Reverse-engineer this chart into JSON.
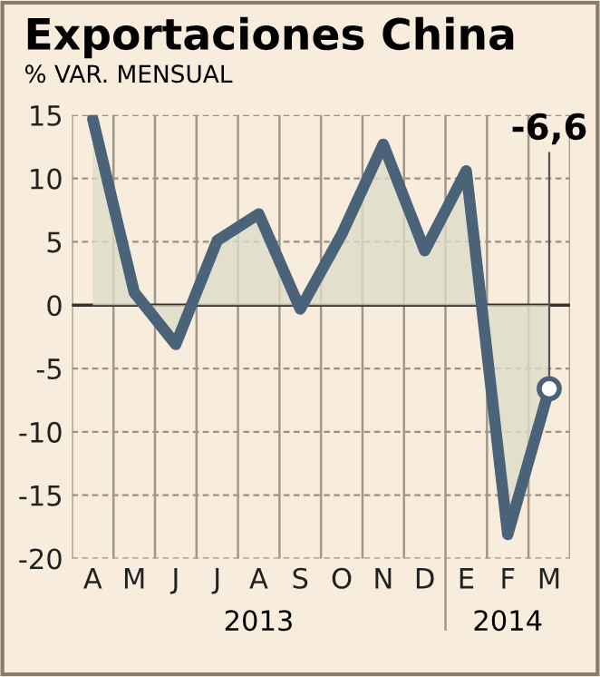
{
  "chart_data": {
    "type": "area",
    "title": "Exportaciones China",
    "subtitle": "% VAR. MENSUAL",
    "categories": [
      "A",
      "M",
      "J",
      "J",
      "A",
      "S",
      "O",
      "N",
      "D",
      "E",
      "F",
      "M"
    ],
    "series": [
      {
        "color": "#4a6378",
        "values": [
          14.7,
          1.0,
          -3.1,
          5.1,
          7.2,
          -0.3,
          5.6,
          12.7,
          4.3,
          10.6,
          -18.1,
          -6.6
        ],
        "value_labels": [
          null,
          null,
          null,
          null,
          null,
          null,
          null,
          null,
          null,
          null,
          null,
          "-6,6"
        ]
      }
    ],
    "ylim": [
      -20,
      15
    ],
    "yticks": [
      -20,
      -15,
      -10,
      -5,
      0,
      5,
      10,
      15
    ],
    "grid": true,
    "ref_lines": [
      {
        "axis": "y",
        "value": 0,
        "color": "#333333",
        "line_style": "solid"
      }
    ],
    "annotations": [
      "2013",
      "2014"
    ]
  }
}
